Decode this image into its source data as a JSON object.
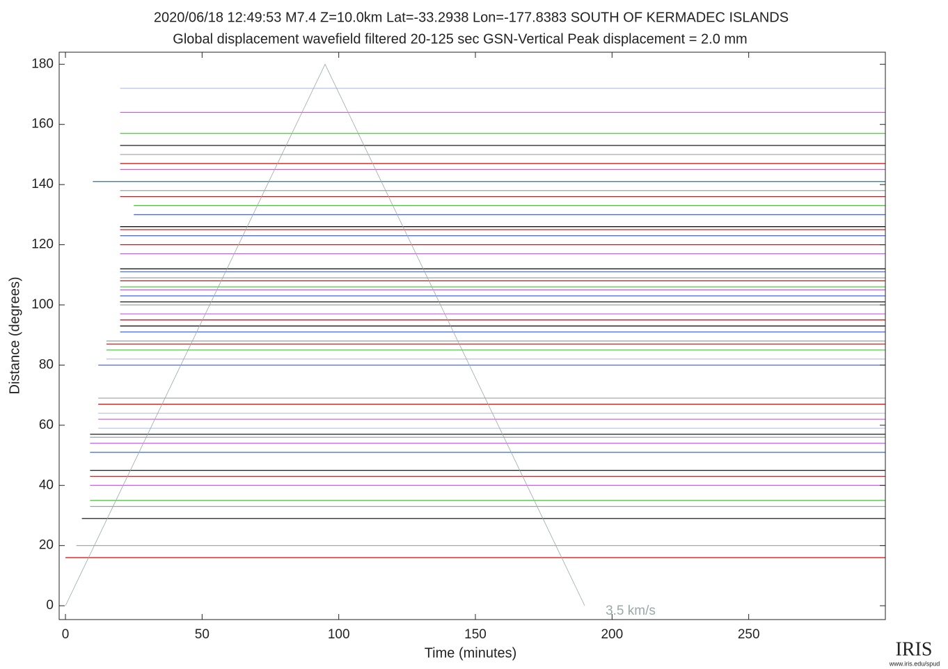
{
  "chart_data": {
    "type": "record_section",
    "title": "2020/06/18  12:49:53  M7.4  Z=10.0km  Lat=-33.2938 Lon=-177.8383  SOUTH OF KERMADEC ISLANDS",
    "subtitle": "Global displacement wavefield     filtered 20-125 sec     GSN-Vertical     Peak displacement = 2.0 mm",
    "x_label": "Time (minutes)",
    "y_label": "Distance (degrees)",
    "xlim": [
      -2.3,
      300
    ],
    "ylim": [
      -4.6,
      184
    ],
    "xticks": [
      0,
      50,
      100,
      150,
      200,
      250
    ],
    "yticks": [
      0,
      20,
      40,
      60,
      80,
      100,
      120,
      140,
      160,
      180
    ],
    "traces": [
      {
        "distance": 172,
        "start": 20,
        "color": "#b8bff0"
      },
      {
        "distance": 164,
        "start": 20,
        "color": "#cc55ee"
      },
      {
        "distance": 157,
        "start": 20,
        "color": "#33cc22"
      },
      {
        "distance": 153,
        "start": 20,
        "color": "#000000"
      },
      {
        "distance": 150,
        "start": 20,
        "color": "#99a0a0"
      },
      {
        "distance": 147,
        "start": 20,
        "color": "#e00000"
      },
      {
        "distance": 145,
        "start": 20,
        "color": "#cc55ee"
      },
      {
        "distance": 141,
        "start": 10,
        "color": "#1f5f70"
      },
      {
        "distance": 138,
        "start": 20,
        "color": "#99a0a0"
      },
      {
        "distance": 136,
        "start": 20,
        "color": "#e00000"
      },
      {
        "distance": 133,
        "start": 25,
        "color": "#33cc22"
      },
      {
        "distance": 130,
        "start": 25,
        "color": "#3a64f0"
      },
      {
        "distance": 126,
        "start": 20,
        "color": "#000000"
      },
      {
        "distance": 125,
        "start": 20,
        "color": "#e00000"
      },
      {
        "distance": 123,
        "start": 20,
        "color": "#3a64f0"
      },
      {
        "distance": 120,
        "start": 20,
        "color": "#e00000"
      },
      {
        "distance": 117,
        "start": 20,
        "color": "#cc55ee"
      },
      {
        "distance": 112,
        "start": 20,
        "color": "#000000"
      },
      {
        "distance": 111,
        "start": 20,
        "color": "#3a64f0"
      },
      {
        "distance": 109,
        "start": 20,
        "color": "#99a0a0"
      },
      {
        "distance": 108,
        "start": 20,
        "color": "#e00000"
      },
      {
        "distance": 106,
        "start": 20,
        "color": "#33cc22"
      },
      {
        "distance": 105,
        "start": 20,
        "color": "#cc55ee"
      },
      {
        "distance": 103,
        "start": 20,
        "color": "#3a64f0"
      },
      {
        "distance": 101,
        "start": 20,
        "color": "#000000"
      },
      {
        "distance": 100,
        "start": 20,
        "color": "#99a0a0"
      },
      {
        "distance": 97,
        "start": 20,
        "color": "#cc55ee"
      },
      {
        "distance": 95,
        "start": 20,
        "color": "#e00000"
      },
      {
        "distance": 93,
        "start": 20,
        "color": "#000000"
      },
      {
        "distance": 91,
        "start": 20,
        "color": "#3a64f0"
      },
      {
        "distance": 88,
        "start": 15,
        "color": "#99a0a0"
      },
      {
        "distance": 87,
        "start": 15,
        "color": "#e00000"
      },
      {
        "distance": 85,
        "start": 15,
        "color": "#33cc22"
      },
      {
        "distance": 82,
        "start": 15,
        "color": "#b8bff0"
      },
      {
        "distance": 80,
        "start": 12,
        "color": "#3a64f0"
      },
      {
        "distance": 69,
        "start": 12,
        "color": "#99a0a0"
      },
      {
        "distance": 67,
        "start": 12,
        "color": "#e00000"
      },
      {
        "distance": 64,
        "start": 12,
        "color": "#b8bff0"
      },
      {
        "distance": 62,
        "start": 12,
        "color": "#cc55ee"
      },
      {
        "distance": 59,
        "start": 12,
        "color": "#b8bff0"
      },
      {
        "distance": 57,
        "start": 9,
        "color": "#000000"
      },
      {
        "distance": 56,
        "start": 9,
        "color": "#99a0a0"
      },
      {
        "distance": 54,
        "start": 9,
        "color": "#cc55ee"
      },
      {
        "distance": 51,
        "start": 9,
        "color": "#3a64f0"
      },
      {
        "distance": 45,
        "start": 9,
        "color": "#000000"
      },
      {
        "distance": 43,
        "start": 9,
        "color": "#e00000"
      },
      {
        "distance": 40,
        "start": 9,
        "color": "#cc55ee"
      },
      {
        "distance": 35,
        "start": 9,
        "color": "#33cc22"
      },
      {
        "distance": 33,
        "start": 9,
        "color": "#99a0a0"
      },
      {
        "distance": 29,
        "start": 6,
        "color": "#000000"
      },
      {
        "distance": 20,
        "start": 4,
        "color": "#99a0a0"
      },
      {
        "distance": 16,
        "start": 0,
        "color": "#e00000"
      }
    ],
    "reference_line": {
      "label": "3.5 km/s",
      "color": "#99a8a8",
      "x": [
        0,
        95,
        190
      ],
      "y": [
        0,
        180,
        0
      ]
    },
    "logo": {
      "text": "IRIS",
      "url": "www.iris.edu/spud"
    }
  }
}
